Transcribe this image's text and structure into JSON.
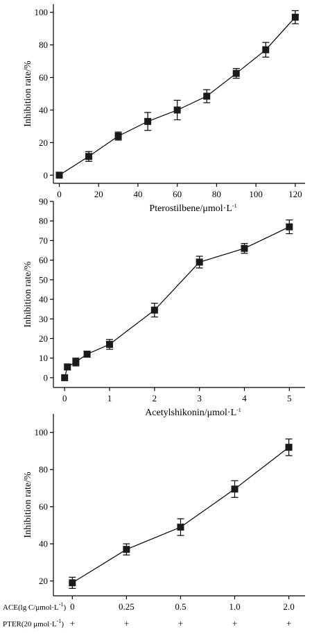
{
  "chart_data": [
    {
      "type": "line",
      "xlabel": "Pterostilbene/μmol·L",
      "xlabel_sup": "-1",
      "ylabel": "Inhibition rate/%",
      "xlim": [
        -3,
        125
      ],
      "ylim": [
        -5,
        105
      ],
      "xticks": [
        0,
        20,
        40,
        60,
        80,
        100,
        120
      ],
      "yticks": [
        0,
        20,
        40,
        60,
        80,
        100
      ],
      "grid": false,
      "x": [
        0,
        15,
        30,
        45,
        60,
        75,
        90,
        105,
        120
      ],
      "y": [
        0,
        11.5,
        24,
        33,
        40,
        48.5,
        62.5,
        77,
        97
      ],
      "err": [
        0,
        3,
        2.5,
        5.5,
        6,
        4,
        3,
        4.5,
        4
      ]
    },
    {
      "type": "line",
      "xlabel": "Acetylshikonin/μmol·L",
      "xlabel_sup": "-1",
      "ylabel": "Inhibition rate/%",
      "xlim": [
        -0.25,
        5.35
      ],
      "ylim": [
        -5,
        90
      ],
      "xticks": [
        0,
        1,
        2,
        3,
        4,
        5
      ],
      "yticks": [
        0,
        10,
        20,
        30,
        40,
        50,
        60,
        70,
        80,
        90
      ],
      "grid": false,
      "x": [
        0,
        0.0625,
        0.25,
        0.5,
        1,
        2,
        3,
        4,
        5
      ],
      "y": [
        0,
        5.5,
        8,
        12,
        17,
        34.5,
        59,
        66,
        77
      ],
      "err": [
        0,
        1.5,
        2,
        1.5,
        2.5,
        3.5,
        3,
        2.5,
        3.5
      ]
    },
    {
      "type": "line",
      "xlabel": "",
      "ylabel": "Inhibition rate/%",
      "ylim": [
        12,
        110
      ],
      "yticks": [
        20,
        40,
        60,
        80,
        100
      ],
      "grid": false,
      "categories": [
        "0",
        "0.25",
        "0.5",
        "1.0",
        "2.0"
      ],
      "y": [
        19,
        37,
        49,
        69.5,
        92
      ],
      "err": [
        3,
        3,
        4.5,
        4.5,
        4.5
      ],
      "row_labels": {
        "ace": "ACE(lg C/μmol·L",
        "ace_sup": "-1",
        "ace_close": ")",
        "pter": "PTER(20 μmol·L",
        "pter_sup": "-1",
        "pter_close": ")"
      },
      "pter_marks": [
        "+",
        "+",
        "+",
        "+",
        "+"
      ]
    }
  ]
}
